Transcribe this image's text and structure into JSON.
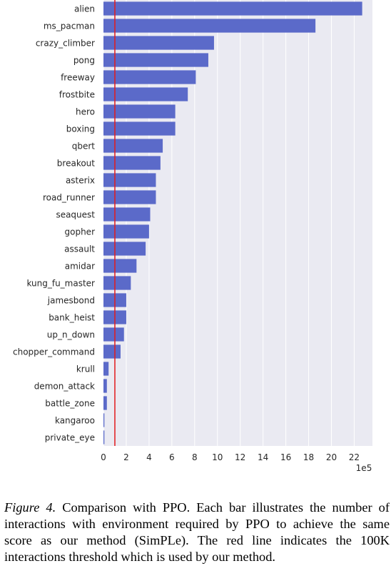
{
  "chart_data": {
    "type": "bar",
    "orientation": "horizontal",
    "categories": [
      "alien",
      "ms_pacman",
      "crazy_climber",
      "pong",
      "freeway",
      "frostbite",
      "hero",
      "boxing",
      "qbert",
      "breakout",
      "asterix",
      "road_runner",
      "seaquest",
      "gopher",
      "assault",
      "amidar",
      "kung_fu_master",
      "jamesbond",
      "bank_heist",
      "up_n_down",
      "chopper_command",
      "krull",
      "demon_attack",
      "battle_zone",
      "kangaroo",
      "private_eye"
    ],
    "values": [
      22.7,
      18.6,
      9.7,
      9.2,
      8.1,
      7.4,
      6.3,
      6.3,
      5.2,
      5.0,
      4.6,
      4.6,
      4.1,
      4.0,
      3.7,
      2.9,
      2.4,
      2.0,
      2.0,
      1.8,
      1.5,
      0.45,
      0.3,
      0.3,
      0.08,
      0.08
    ],
    "xlim": [
      0,
      23.6
    ],
    "xticks": [
      "0",
      "2",
      "4",
      "6",
      "8",
      "10",
      "12",
      "14",
      "16",
      "18",
      "20",
      "22"
    ],
    "x_scale_label": "1e5",
    "threshold": 1.0,
    "grid": true,
    "colors": {
      "bar": "#5b6ac9",
      "background": "#eaeaf2",
      "threshold": "#e31a1c",
      "grid": "#ffffff"
    }
  },
  "caption": {
    "figure_label": "Figure 4.",
    "text": " Comparison with PPO. Each bar illustrates the number of interactions with environment required by PPO to achieve the same score as our method (SimPLe). The red line indicates the 100K interactions threshold which is used by our method."
  }
}
